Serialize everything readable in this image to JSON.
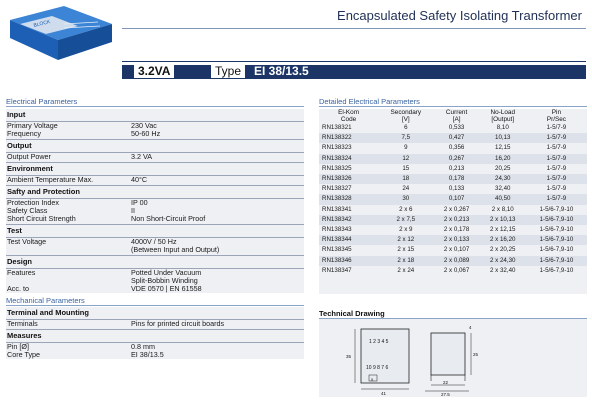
{
  "header": {
    "title": "Encapsulated Safety Isolating Transformer",
    "power": "3.2VA",
    "type_label": "Type",
    "type_value": "EI 38/13.5",
    "photo_label": "BLOCK"
  },
  "electrical": {
    "section_title": "Electrical Parameters",
    "groups": [
      {
        "heading": "Input",
        "rows": [
          {
            "k": "Primary Voltage",
            "v": "230 Vac"
          },
          {
            "k": "Frequency",
            "v": "50-60 Hz"
          }
        ]
      },
      {
        "heading": "Output",
        "rows": [
          {
            "k": "Output Power",
            "v": "3.2 VA"
          }
        ]
      },
      {
        "heading": "Environment",
        "rows": [
          {
            "k": "Ambient Temperature Max.",
            "v": "40°C"
          }
        ]
      },
      {
        "heading": "Safty and Protection",
        "rows": [
          {
            "k": "Protection Index",
            "v": "IP 00"
          },
          {
            "k": "Safety Class",
            "v": "II"
          },
          {
            "k": "Short Circuit Strength",
            "v": "Non Short-Circuit Proof"
          }
        ]
      },
      {
        "heading": "Test",
        "rows": [
          {
            "k": "Test Voltage",
            "v": "4000V / 50 Hz"
          },
          {
            "k": "",
            "v": "(Between Input and Output)"
          }
        ]
      },
      {
        "heading": "Design",
        "rows": [
          {
            "k": "Features",
            "v": "Potted Under Vacuum"
          },
          {
            "k": "",
            "v": "Split-Bobbin Winding"
          },
          {
            "k": "Acc. to",
            "v": "VDE 0570 | EN 61558"
          }
        ]
      }
    ]
  },
  "mechanical": {
    "section_title": "Mechanical Parameters",
    "groups": [
      {
        "heading": "Terminal and Mounting",
        "rows": [
          {
            "k": "Terminals",
            "v": "Pins for printed circuit boards"
          }
        ]
      },
      {
        "heading": "Measures",
        "rows": [
          {
            "k": "Pin [Ø]",
            "v": "0.8 mm"
          },
          {
            "k": "Core Type",
            "v": "EI 38/13.5"
          }
        ]
      }
    ]
  },
  "detailed": {
    "section_title": "Detailed Electrical Parameters",
    "headers": [
      {
        "l1": "El-Kom",
        "l2": "Code"
      },
      {
        "l1": "Secondary",
        "l2": "[V]"
      },
      {
        "l1": "Current",
        "l2": "[A]"
      },
      {
        "l1": "No-Load",
        "l2": "[Output]"
      },
      {
        "l1": "Pin",
        "l2": "Pr/Sec"
      }
    ],
    "rows": [
      [
        "RN138321",
        "6",
        "0,533",
        "8,10",
        "1-5/7-9"
      ],
      [
        "RN138322",
        "7,5",
        "0,427",
        "10,13",
        "1-5/7-9"
      ],
      [
        "RN138323",
        "9",
        "0,356",
        "12,15",
        "1-5/7-9"
      ],
      [
        "RN138324",
        "12",
        "0,267",
        "16,20",
        "1-5/7-9"
      ],
      [
        "RN138325",
        "15",
        "0,213",
        "20,25",
        "1-5/7-9"
      ],
      [
        "RN138326",
        "18",
        "0,178",
        "24,30",
        "1-5/7-9"
      ],
      [
        "RN138327",
        "24",
        "0,133",
        "32,40",
        "1-5/7-9"
      ],
      [
        "RN138328",
        "30",
        "0,107",
        "40,50",
        "1-5/7-9"
      ],
      [
        "RN138341",
        "2 x 6",
        "2 x 0,267",
        "2 x 8,10",
        "1-5/6-7,9-10"
      ],
      [
        "RN138342",
        "2 x 7,5",
        "2 x 0,213",
        "2 x 10,13",
        "1-5/6-7,9-10"
      ],
      [
        "RN138343",
        "2 x 9",
        "2 x 0,178",
        "2 x 12,15",
        "1-5/6-7,9-10"
      ],
      [
        "RN138344",
        "2 x 12",
        "2 x 0,133",
        "2 x 16,20",
        "1-5/6-7,9-10"
      ],
      [
        "RN138345",
        "2 x 15",
        "2 x 0,107",
        "2 x 20,25",
        "1-5/6-7,9-10"
      ],
      [
        "RN138346",
        "2 x 18",
        "2 x 0,089",
        "2 x 24,30",
        "1-5/6-7,9-10"
      ],
      [
        "RN138347",
        "2 x 24",
        "2 x 0,067",
        "2 x 32,40",
        "1-5/6-7,9-10"
      ]
    ]
  },
  "technical": {
    "title": "Technical Drawing",
    "pins_top": "1 2 3 4 5",
    "pins_bottom": "10 9 8 7 6",
    "dim_width": "41",
    "dim_height": "35",
    "dim_pitch": "27.5",
    "dim_depth": "22",
    "dim_side_h": "25",
    "dim_side_top": "4",
    "dim_spacing": "5"
  },
  "colors": {
    "brand": "#1c3566",
    "section": "#3a63a0",
    "panel": "#eef0f3",
    "photo_blue": "#1d5fb4"
  }
}
